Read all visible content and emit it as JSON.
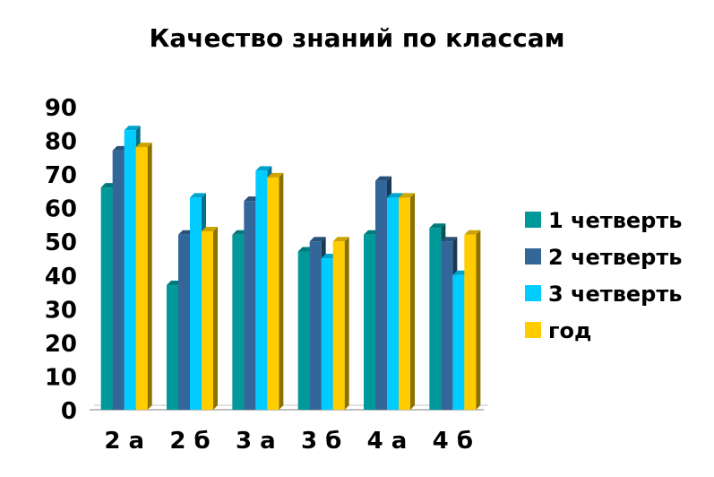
{
  "chart_data": {
    "type": "bar",
    "title": "Качество знаний по классам",
    "xlabel": "",
    "ylabel": "",
    "ylim": [
      0,
      90
    ],
    "yticks": [
      0,
      10,
      20,
      30,
      40,
      50,
      60,
      70,
      80,
      90
    ],
    "grid": false,
    "legend_position": "right",
    "categories": [
      "2 а",
      "2 б",
      "3 а",
      "3 б",
      "4 а",
      "4 б"
    ],
    "series": [
      {
        "name": "1 четверть",
        "color": "#009999",
        "values": [
          66,
          37,
          52,
          47,
          52,
          54
        ]
      },
      {
        "name": "2 четверть",
        "color": "#336699",
        "values": [
          77,
          52,
          62,
          50,
          68,
          50
        ]
      },
      {
        "name": "3 четверть",
        "color": "#00CCFF",
        "values": [
          83,
          63,
          71,
          45,
          63,
          40
        ]
      },
      {
        "name": "год",
        "color": "#FFCC00",
        "values": [
          78,
          53,
          69,
          50,
          63,
          52
        ]
      }
    ]
  }
}
